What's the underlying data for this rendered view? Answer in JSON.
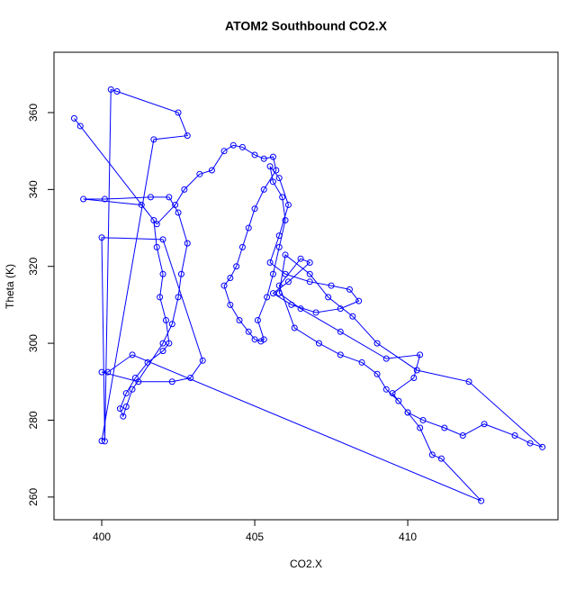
{
  "chart_data": {
    "type": "line",
    "title": "ATOM2 Southbound CO2.X",
    "x_label": "CO2.X",
    "y_label": "Theta (K)",
    "color": "#0000ff",
    "markers": "circle",
    "x": [
      399.1,
      399.3,
      401.7,
      401.8,
      402.0,
      401.9,
      402.1,
      402.2,
      402.0,
      401.5,
      401.1,
      400.8,
      400.6,
      400.7,
      400.8,
      401.0,
      402.0,
      402.3,
      402.5,
      402.6,
      402.8,
      402.5,
      402.2,
      401.6,
      400.1,
      399.4,
      401.3,
      401.8,
      402.4,
      402.7,
      403.2,
      403.6,
      404.0,
      404.3,
      404.6,
      405.0,
      405.3,
      405.6,
      405.7,
      405.3,
      405.0,
      404.8,
      404.6,
      404.4,
      404.2,
      404.0,
      404.2,
      404.5,
      404.8,
      405.0,
      405.2,
      405.3,
      405.1,
      405.4,
      405.6,
      405.8,
      406.0,
      405.9,
      405.6,
      405.5,
      405.8,
      406.1,
      405.8,
      405.5,
      406.0,
      406.8,
      407.5,
      408.1,
      408.4,
      407.8,
      407.0,
      406.2,
      405.6,
      406.1,
      406.8,
      406.5,
      405.8,
      406.3,
      407.1,
      407.8,
      408.5,
      409.0,
      409.3,
      409.7,
      410.0,
      410.5,
      411.2,
      411.8,
      412.5,
      413.5,
      414.0,
      414.4,
      412.0,
      410.3,
      409.0,
      408.2,
      407.4,
      406.8,
      406.0,
      405.8,
      406.5,
      407.8,
      409.3,
      410.4,
      410.2,
      409.5,
      410.0,
      410.4,
      410.8,
      411.1,
      412.4,
      401.0,
      400.2,
      400.0,
      401.2,
      402.3,
      402.9,
      403.3,
      402.0,
      400.0,
      400.1,
      400.3,
      400.5,
      402.5,
      402.8,
      401.7,
      400.0
    ],
    "values": [
      358.5,
      356.5,
      332,
      325,
      318,
      312,
      306,
      300,
      298,
      295,
      291,
      287,
      283,
      281,
      283.5,
      288,
      300,
      305,
      312,
      318,
      326,
      334,
      338,
      338,
      337.5,
      337.5,
      336,
      331,
      336,
      340,
      344,
      345,
      350,
      351.5,
      351,
      349,
      348,
      348.5,
      345,
      340,
      335,
      330,
      325,
      320,
      317,
      315,
      310,
      306,
      303,
      301,
      300.5,
      301,
      306,
      312,
      318,
      325,
      332,
      338,
      342,
      346,
      343,
      336,
      328,
      321,
      318,
      316,
      315,
      314,
      311,
      309,
      308,
      310,
      313,
      316,
      321,
      322,
      315,
      304,
      300,
      297,
      295,
      292,
      288,
      285,
      282,
      280,
      278,
      276,
      279,
      276,
      274,
      273,
      290,
      293,
      300,
      307,
      312,
      318,
      323,
      313,
      309,
      303,
      296,
      297,
      291,
      287,
      282,
      278,
      271,
      270,
      259,
      297,
      292.5,
      292.5,
      290,
      290,
      291,
      295.5,
      327,
      327.5,
      274.5,
      366,
      365.5,
      360,
      354,
      353,
      274.6
    ],
    "xlim": [
      398.44,
      414.91
    ],
    "ylim": [
      254.1,
      375.7
    ],
    "xticks": [
      400,
      405,
      410
    ],
    "yticks": [
      260,
      280,
      300,
      320,
      340,
      360
    ]
  }
}
